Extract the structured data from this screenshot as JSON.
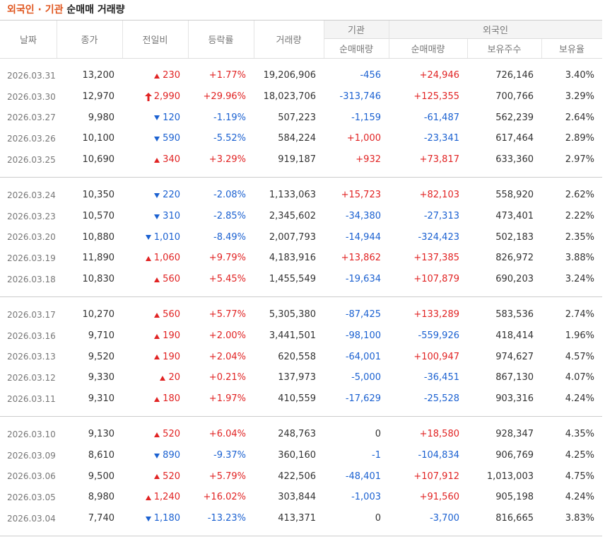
{
  "title": {
    "highlight": "외국인 · 기관",
    "rest": "순매매 거래량"
  },
  "header": {
    "columns": [
      "날짜",
      "종가",
      "전일비",
      "등락률",
      "거래량"
    ],
    "groups": [
      {
        "label": "기관",
        "sub": [
          "순매매량"
        ]
      },
      {
        "label": "외국인",
        "sub": [
          "순매매량",
          "보유주수",
          "보유율"
        ]
      }
    ]
  },
  "row_groups": [
    [
      {
        "arrow": "up",
        "cells": [
          "2026.03.31",
          "13,200",
          "230",
          "+1.77%",
          "19,206,906",
          "-456",
          "+24,946",
          "726,146",
          "3.40%"
        ]
      },
      {
        "arrow": "upper-limit",
        "cells": [
          "2026.03.30",
          "12,970",
          "2,990",
          "+29.96%",
          "18,023,706",
          "-313,746",
          "+125,355",
          "700,766",
          "3.29%"
        ]
      },
      {
        "arrow": "down",
        "cells": [
          "2026.03.27",
          "9,980",
          "120",
          "-1.19%",
          "507,223",
          "-1,159",
          "-61,487",
          "562,239",
          "2.64%"
        ]
      },
      {
        "arrow": "down",
        "cells": [
          "2026.03.26",
          "10,100",
          "590",
          "-5.52%",
          "584,224",
          "+1,000",
          "-23,341",
          "617,464",
          "2.89%"
        ]
      },
      {
        "arrow": "up",
        "cells": [
          "2026.03.25",
          "10,690",
          "340",
          "+3.29%",
          "919,187",
          "+932",
          "+73,817",
          "633,360",
          "2.97%"
        ]
      }
    ],
    [
      {
        "arrow": "down",
        "cells": [
          "2026.03.24",
          "10,350",
          "220",
          "-2.08%",
          "1,133,063",
          "+15,723",
          "+82,103",
          "558,920",
          "2.62%"
        ]
      },
      {
        "arrow": "down",
        "cells": [
          "2026.03.23",
          "10,570",
          "310",
          "-2.85%",
          "2,345,602",
          "-34,380",
          "-27,313",
          "473,401",
          "2.22%"
        ]
      },
      {
        "arrow": "down",
        "cells": [
          "2026.03.20",
          "10,880",
          "1,010",
          "-8.49%",
          "2,007,793",
          "-14,944",
          "-324,423",
          "502,183",
          "2.35%"
        ]
      },
      {
        "arrow": "up",
        "cells": [
          "2026.03.19",
          "11,890",
          "1,060",
          "+9.79%",
          "4,183,916",
          "+13,862",
          "+137,385",
          "826,972",
          "3.88%"
        ]
      },
      {
        "arrow": "up",
        "cells": [
          "2026.03.18",
          "10,830",
          "560",
          "+5.45%",
          "1,455,549",
          "-19,634",
          "+107,879",
          "690,203",
          "3.24%"
        ]
      }
    ],
    [
      {
        "arrow": "up",
        "cells": [
          "2026.03.17",
          "10,270",
          "560",
          "+5.77%",
          "5,305,380",
          "-87,425",
          "+133,289",
          "583,536",
          "2.74%"
        ]
      },
      {
        "arrow": "up",
        "cells": [
          "2026.03.16",
          "9,710",
          "190",
          "+2.00%",
          "3,441,501",
          "-98,100",
          "-559,926",
          "418,414",
          "1.96%"
        ]
      },
      {
        "arrow": "up",
        "cells": [
          "2026.03.13",
          "9,520",
          "190",
          "+2.04%",
          "620,558",
          "-64,001",
          "+100,947",
          "974,627",
          "4.57%"
        ]
      },
      {
        "arrow": "up",
        "cells": [
          "2026.03.12",
          "9,330",
          "20",
          "+0.21%",
          "137,973",
          "-5,000",
          "-36,451",
          "867,130",
          "4.07%"
        ]
      },
      {
        "arrow": "up",
        "cells": [
          "2026.03.11",
          "9,310",
          "180",
          "+1.97%",
          "410,559",
          "-17,629",
          "-25,528",
          "903,316",
          "4.24%"
        ]
      }
    ],
    [
      {
        "arrow": "up",
        "cells": [
          "2026.03.10",
          "9,130",
          "520",
          "+6.04%",
          "248,763",
          "0",
          "+18,580",
          "928,347",
          "4.35%"
        ]
      },
      {
        "arrow": "down",
        "cells": [
          "2026.03.09",
          "8,610",
          "890",
          "-9.37%",
          "360,160",
          "-1",
          "-104,834",
          "906,769",
          "4.25%"
        ]
      },
      {
        "arrow": "up",
        "cells": [
          "2026.03.06",
          "9,500",
          "520",
          "+5.79%",
          "422,506",
          "-48,401",
          "+107,912",
          "1,013,003",
          "4.75%"
        ]
      },
      {
        "arrow": "up",
        "cells": [
          "2026.03.05",
          "8,980",
          "1,240",
          "+16.02%",
          "303,844",
          "-1,003",
          "+91,560",
          "905,198",
          "4.24%"
        ]
      },
      {
        "arrow": "down",
        "cells": [
          "2026.03.04",
          "7,740",
          "1,180",
          "-13.23%",
          "413,371",
          "0",
          "-3,700",
          "816,665",
          "3.83%"
        ]
      }
    ]
  ]
}
